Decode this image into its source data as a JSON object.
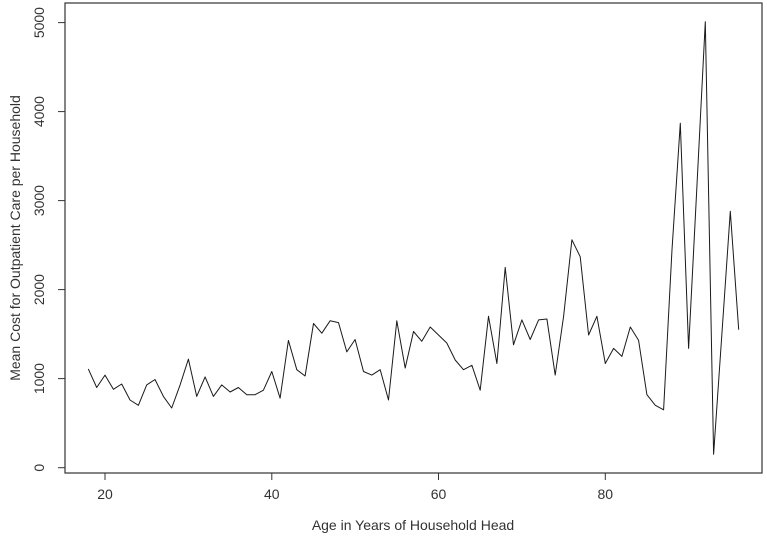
{
  "chart_data": {
    "type": "line",
    "title": "",
    "xlabel": "Age in Years of Household Head",
    "ylabel": "Mean Cost for Outpatient Care per Household",
    "x": [
      18,
      19,
      20,
      21,
      22,
      23,
      24,
      25,
      26,
      27,
      28,
      29,
      30,
      31,
      32,
      33,
      34,
      35,
      36,
      37,
      38,
      39,
      40,
      41,
      42,
      43,
      44,
      45,
      46,
      47,
      48,
      49,
      50,
      51,
      52,
      53,
      54,
      55,
      56,
      57,
      58,
      59,
      60,
      61,
      62,
      63,
      64,
      65,
      66,
      67,
      68,
      69,
      70,
      71,
      72,
      73,
      74,
      75,
      76,
      77,
      78,
      79,
      80,
      81,
      82,
      83,
      84,
      85,
      86,
      87,
      88,
      89,
      90,
      91,
      92,
      93,
      94,
      95,
      96
    ],
    "values": [
      1110,
      900,
      1040,
      880,
      940,
      760,
      700,
      930,
      990,
      800,
      670,
      930,
      1220,
      800,
      1020,
      800,
      930,
      850,
      900,
      820,
      820,
      870,
      1080,
      780,
      1430,
      1100,
      1030,
      1620,
      1510,
      1650,
      1630,
      1300,
      1440,
      1080,
      1040,
      1100,
      760,
      1650,
      1120,
      1530,
      1420,
      1580,
      1490,
      1400,
      1210,
      1100,
      1150,
      870,
      1700,
      1170,
      2250,
      1380,
      1660,
      1440,
      1660,
      1670,
      1040,
      1700,
      2560,
      2370,
      1490,
      1700,
      1170,
      1340,
      1250,
      1580,
      1430,
      820,
      700,
      650,
      2450,
      3870,
      1340,
      3180,
      5010,
      150,
      1520,
      2880,
      1550
    ],
    "xticks": [
      20,
      40,
      60,
      80
    ],
    "yticks": [
      0,
      1000,
      2000,
      3000,
      4000,
      5000
    ],
    "xlim": [
      15.2,
      98.8
    ],
    "ylim": [
      -60,
      5220
    ],
    "grid": false,
    "legend": "none",
    "line_color": "#1a1a1a",
    "axis_color": "#333333",
    "text_color": "#333333",
    "background_color": "#ffffff"
  }
}
